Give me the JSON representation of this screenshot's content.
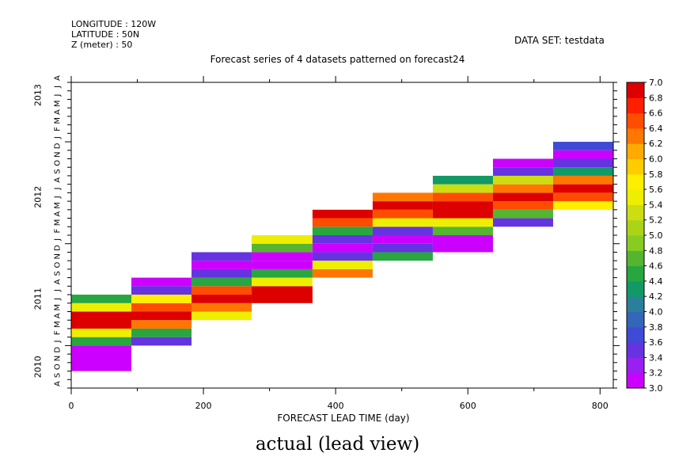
{
  "header": {
    "longitude": "LONGITUDE : 120W",
    "latitude": "LATITUDE : 50N",
    "z": "Z (meter) : 50",
    "dataset": "DATA SET: testdata",
    "title": "Forecast series of 4 datasets patterned on forecast24"
  },
  "caption": "actual (lead view)",
  "chart_data": {
    "type": "heatmap",
    "title": "Forecast series of 4 datasets patterned on forecast24",
    "xlabel": "FORECAST LEAD TIME (day)",
    "ylabel": "",
    "xlim": [
      0,
      820
    ],
    "x_ticks": [
      0,
      200,
      400,
      600,
      800
    ],
    "y_range": [
      "2010-08",
      "2013-08"
    ],
    "y_month_letters": "ASONDJFMAMJJASONDJFMAMJJASONDJFMAMJJA",
    "y_year_labels": [
      {
        "label": "2010",
        "at": "2010-10"
      },
      {
        "label": "2011",
        "at": "2011-06"
      },
      {
        "label": "2012",
        "at": "2012-06"
      },
      {
        "label": "2013",
        "at": "2013-06"
      }
    ],
    "colorbar": {
      "min": 3.0,
      "max": 7.0,
      "step": 0.2,
      "labels": [
        "3.0",
        "3.2",
        "3.4",
        "3.6",
        "3.8",
        "4.0",
        "4.2",
        "4.4",
        "4.6",
        "4.8",
        "5.0",
        "5.2",
        "5.4",
        "5.6",
        "5.8",
        "6.0",
        "6.2",
        "6.4",
        "6.6",
        "6.8",
        "7.0"
      ],
      "colors": [
        "#cc00ff",
        "#9a1ff0",
        "#6633e0",
        "#3f4bd6",
        "#3366bb",
        "#2a7f9a",
        "#119a66",
        "#28a640",
        "#55b530",
        "#88cc22",
        "#aad418",
        "#ccdd11",
        "#eeee00",
        "#ffee00",
        "#ffcc00",
        "#ffaa00",
        "#ff7700",
        "#ff4d00",
        "#ff1f00",
        "#dd0000",
        "#a00000",
        "#8b0000"
      ]
    },
    "lead_columns": [
      {
        "x0": 0,
        "x1": 91,
        "cells": [
          {
            "start": "2010-10",
            "end": "2011-01",
            "value": 3.1
          },
          {
            "start": "2011-01",
            "end": "2011-02",
            "value": 4.5
          },
          {
            "start": "2011-02",
            "end": "2011-03",
            "value": 5.5
          },
          {
            "start": "2011-03",
            "end": "2011-05",
            "value": 6.9
          },
          {
            "start": "2011-05",
            "end": "2011-06",
            "value": 5.5
          },
          {
            "start": "2011-06",
            "end": "2011-07",
            "value": 4.5
          }
        ]
      },
      {
        "x0": 91,
        "x1": 182,
        "cells": [
          {
            "start": "2011-01",
            "end": "2011-02",
            "value": 3.5
          },
          {
            "start": "2011-02",
            "end": "2011-03",
            "value": 4.5
          },
          {
            "start": "2011-03",
            "end": "2011-04",
            "value": 6.3
          },
          {
            "start": "2011-04",
            "end": "2011-05",
            "value": 6.9
          },
          {
            "start": "2011-05",
            "end": "2011-06",
            "value": 6.5
          },
          {
            "start": "2011-06",
            "end": "2011-07",
            "value": 5.7
          },
          {
            "start": "2011-07",
            "end": "2011-08",
            "value": 3.5
          },
          {
            "start": "2011-08",
            "end": "2011-09",
            "value": 3.1
          }
        ]
      },
      {
        "x0": 182,
        "x1": 273,
        "cells": [
          {
            "start": "2011-04",
            "end": "2011-05",
            "value": 5.5
          },
          {
            "start": "2011-05",
            "end": "2011-06",
            "value": 6.3
          },
          {
            "start": "2011-06",
            "end": "2011-07",
            "value": 6.9
          },
          {
            "start": "2011-07",
            "end": "2011-08",
            "value": 6.5
          },
          {
            "start": "2011-08",
            "end": "2011-09",
            "value": 4.5
          },
          {
            "start": "2011-09",
            "end": "2011-10",
            "value": 3.5
          },
          {
            "start": "2011-10",
            "end": "2011-11",
            "value": 3.1
          },
          {
            "start": "2011-11",
            "end": "2011-12",
            "value": 3.5
          }
        ]
      },
      {
        "x0": 273,
        "x1": 365,
        "cells": [
          {
            "start": "2011-06",
            "end": "2011-08",
            "value": 6.9
          },
          {
            "start": "2011-08",
            "end": "2011-09",
            "value": 5.5
          },
          {
            "start": "2011-09",
            "end": "2011-10",
            "value": 4.5
          },
          {
            "start": "2011-10",
            "end": "2011-11",
            "value": 3.1
          },
          {
            "start": "2011-11",
            "end": "2011-12",
            "value": 3.1
          },
          {
            "start": "2011-12",
            "end": "2012-01",
            "value": 4.7
          },
          {
            "start": "2012-01",
            "end": "2012-02",
            "value": 5.5
          }
        ]
      },
      {
        "x0": 365,
        "x1": 456,
        "cells": [
          {
            "start": "2011-09",
            "end": "2011-10",
            "value": 6.3
          },
          {
            "start": "2011-10",
            "end": "2011-11",
            "value": 5.5
          },
          {
            "start": "2011-11",
            "end": "2011-12",
            "value": 3.5
          },
          {
            "start": "2011-12",
            "end": "2012-01",
            "value": 3.1
          },
          {
            "start": "2012-01",
            "end": "2012-02",
            "value": 3.5
          },
          {
            "start": "2012-02",
            "end": "2012-03",
            "value": 4.5
          },
          {
            "start": "2012-03",
            "end": "2012-04",
            "value": 6.5
          },
          {
            "start": "2012-04",
            "end": "2012-05",
            "value": 6.9
          }
        ]
      },
      {
        "x0": 456,
        "x1": 547,
        "cells": [
          {
            "start": "2011-11",
            "end": "2011-12",
            "value": 4.5
          },
          {
            "start": "2011-12",
            "end": "2012-01",
            "value": 3.5
          },
          {
            "start": "2012-01",
            "end": "2012-02",
            "value": 3.1
          },
          {
            "start": "2012-02",
            "end": "2012-03",
            "value": 3.5
          },
          {
            "start": "2012-03",
            "end": "2012-04",
            "value": 5.5
          },
          {
            "start": "2012-04",
            "end": "2012-05",
            "value": 6.5
          },
          {
            "start": "2012-05",
            "end": "2012-06",
            "value": 6.9
          },
          {
            "start": "2012-06",
            "end": "2012-07",
            "value": 6.3
          }
        ]
      },
      {
        "x0": 547,
        "x1": 638,
        "cells": [
          {
            "start": "2011-12",
            "end": "2012-02",
            "value": 3.1
          },
          {
            "start": "2012-02",
            "end": "2012-03",
            "value": 4.7
          },
          {
            "start": "2012-03",
            "end": "2012-04",
            "value": 5.5
          },
          {
            "start": "2012-04",
            "end": "2012-06",
            "value": 6.9
          },
          {
            "start": "2012-06",
            "end": "2012-07",
            "value": 6.5
          },
          {
            "start": "2012-07",
            "end": "2012-08",
            "value": 5.3
          },
          {
            "start": "2012-08",
            "end": "2012-09",
            "value": 4.3
          }
        ]
      },
      {
        "x0": 638,
        "x1": 729,
        "cells": [
          {
            "start": "2012-03",
            "end": "2012-04",
            "value": 3.5
          },
          {
            "start": "2012-04",
            "end": "2012-05",
            "value": 4.7
          },
          {
            "start": "2012-05",
            "end": "2012-06",
            "value": 6.5
          },
          {
            "start": "2012-06",
            "end": "2012-07",
            "value": 6.9
          },
          {
            "start": "2012-07",
            "end": "2012-08",
            "value": 6.3
          },
          {
            "start": "2012-08",
            "end": "2012-09",
            "value": 5.3
          },
          {
            "start": "2012-09",
            "end": "2012-10",
            "value": 3.5
          },
          {
            "start": "2012-10",
            "end": "2012-11",
            "value": 3.1
          }
        ]
      },
      {
        "x0": 729,
        "x1": 820,
        "cells": [
          {
            "start": "2012-05",
            "end": "2012-06",
            "value": 5.7
          },
          {
            "start": "2012-06",
            "end": "2012-07",
            "value": 6.5
          },
          {
            "start": "2012-07",
            "end": "2012-08",
            "value": 6.9
          },
          {
            "start": "2012-08",
            "end": "2012-09",
            "value": 6.3
          },
          {
            "start": "2012-09",
            "end": "2012-10",
            "value": 4.3
          },
          {
            "start": "2012-10",
            "end": "2012-11",
            "value": 3.5
          },
          {
            "start": "2012-11",
            "end": "2012-12",
            "value": 3.1
          },
          {
            "start": "2012-12",
            "end": "2013-01",
            "value": 3.7
          }
        ]
      }
    ]
  }
}
